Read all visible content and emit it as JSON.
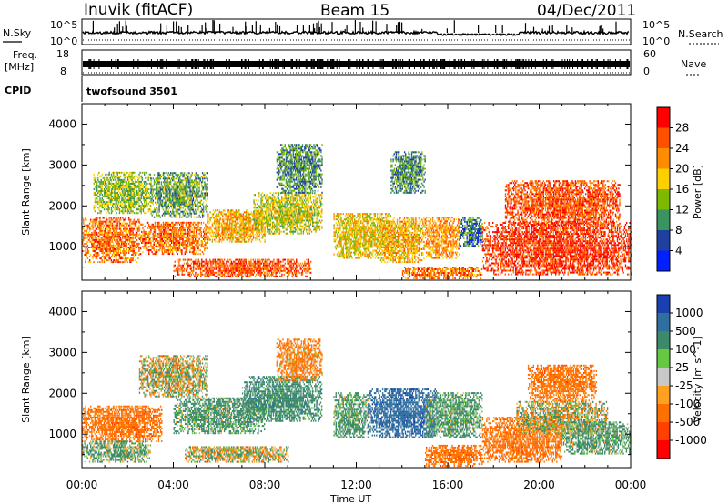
{
  "header": {
    "station": "Inuvik (fitACF)",
    "beam": "Beam 15",
    "date": "04/Dec/2011"
  },
  "status_panels": {
    "nsky_label": "N.Sky",
    "nsky_ticks": [
      "10^5",
      "10^0"
    ],
    "nsearch_label": "N.Search",
    "freq_label_1": "Freq.",
    "freq_label_2": "[MHz]",
    "freq_ticks": [
      "18",
      "8"
    ],
    "nave_label": "Nave",
    "nave_ticks": [
      "60",
      "0"
    ],
    "cpid_label": "CPID",
    "cpid_value": "twofsound 3501"
  },
  "chart_data": [
    {
      "type": "heatmap",
      "name": "power-panel",
      "ylabel": "Slant Range [km]",
      "xlabel": "Time UT",
      "x_ticks": [
        "00:00",
        "04:00",
        "08:00",
        "12:00",
        "16:00",
        "20:00",
        "00:00"
      ],
      "y_ticks": [
        1000,
        2000,
        3000,
        4000
      ],
      "xlim_hours": [
        0,
        24
      ],
      "ylim_km": [
        180,
        4500
      ],
      "colorbar": {
        "label": "Power [dB]",
        "ticks": [
          "28",
          "24",
          "20",
          "16",
          "12",
          "8",
          "4"
        ],
        "colors": [
          "#ff0000",
          "#ff5000",
          "#ff8c00",
          "#ffd000",
          "#7fb800",
          "#3a9460",
          "#2040a0",
          "#0020ff"
        ]
      },
      "regions": [
        {
          "t": [
            0.0,
            2.5
          ],
          "r": [
            600,
            1700
          ],
          "v": 24
        },
        {
          "t": [
            2.5,
            5.5
          ],
          "r": [
            800,
            1600
          ],
          "v": 24
        },
        {
          "t": [
            0.5,
            3.0
          ],
          "r": [
            1800,
            2800
          ],
          "v": 14
        },
        {
          "t": [
            3.0,
            5.5
          ],
          "r": [
            1700,
            2800
          ],
          "v": 12
        },
        {
          "t": [
            5.5,
            8.0
          ],
          "r": [
            1100,
            1900
          ],
          "v": 20
        },
        {
          "t": [
            7.5,
            10.5
          ],
          "r": [
            1300,
            2300
          ],
          "v": 16
        },
        {
          "t": [
            8.5,
            10.5
          ],
          "r": [
            2300,
            3500
          ],
          "v": 10
        },
        {
          "t": [
            4.0,
            10.0
          ],
          "r": [
            250,
            700
          ],
          "v": 26
        },
        {
          "t": [
            11.0,
            13.5
          ],
          "r": [
            700,
            1800
          ],
          "v": 18
        },
        {
          "t": [
            13.0,
            15.0
          ],
          "r": [
            600,
            1700
          ],
          "v": 20
        },
        {
          "t": [
            13.5,
            15.0
          ],
          "r": [
            2300,
            3300
          ],
          "v": 10
        },
        {
          "t": [
            15.0,
            16.5
          ],
          "r": [
            700,
            1700
          ],
          "v": 22
        },
        {
          "t": [
            14.0,
            17.5
          ],
          "r": [
            200,
            500
          ],
          "v": 24
        },
        {
          "t": [
            16.5,
            17.5
          ],
          "r": [
            1000,
            1700
          ],
          "v": 8
        },
        {
          "t": [
            17.5,
            24.0
          ],
          "r": [
            300,
            1600
          ],
          "v": 28
        },
        {
          "t": [
            18.5,
            23.5
          ],
          "r": [
            1500,
            2600
          ],
          "v": 26
        }
      ]
    },
    {
      "type": "heatmap",
      "name": "velocity-panel",
      "ylabel": "Slant Range [km]",
      "xlabel": "Time UT",
      "x_ticks": [
        "00:00",
        "04:00",
        "08:00",
        "12:00",
        "16:00",
        "20:00",
        "00:00"
      ],
      "y_ticks": [
        1000,
        2000,
        3000,
        4000
      ],
      "xlim_hours": [
        0,
        24
      ],
      "ylim_km": [
        180,
        4500
      ],
      "colorbar": {
        "label": "Velocity [m s^-1]",
        "ticks": [
          "1000",
          "500",
          "100",
          "25",
          "-25",
          "-100",
          "-500",
          "-1000"
        ],
        "colors": [
          "#1a3fb0",
          "#2f6fa0",
          "#3d8a6a",
          "#66c840",
          "#c8c8c8",
          "#ffa020",
          "#ff7000",
          "#ff4000",
          "#ff0000"
        ]
      },
      "regions": [
        {
          "t": [
            0.0,
            3.5
          ],
          "r": [
            800,
            1700
          ],
          "v": -300
        },
        {
          "t": [
            0.0,
            3.0
          ],
          "r": [
            300,
            800
          ],
          "v": 150
        },
        {
          "t": [
            2.5,
            5.5
          ],
          "r": [
            1900,
            2900
          ],
          "v": 0
        },
        {
          "t": [
            4.0,
            8.0
          ],
          "r": [
            1000,
            1900
          ],
          "v": 200
        },
        {
          "t": [
            4.5,
            9.0
          ],
          "r": [
            300,
            700
          ],
          "v": 0
        },
        {
          "t": [
            7.0,
            10.5
          ],
          "r": [
            1300,
            2400
          ],
          "v": 300
        },
        {
          "t": [
            8.5,
            10.5
          ],
          "r": [
            2300,
            3300
          ],
          "v": -200
        },
        {
          "t": [
            11.0,
            12.5
          ],
          "r": [
            900,
            2000
          ],
          "v": 200
        },
        {
          "t": [
            12.5,
            15.5
          ],
          "r": [
            900,
            2100
          ],
          "v": 800
        },
        {
          "t": [
            15.0,
            17.5
          ],
          "r": [
            900,
            2000
          ],
          "v": 200
        },
        {
          "t": [
            15.0,
            17.5
          ],
          "r": [
            200,
            700
          ],
          "v": -300
        },
        {
          "t": [
            17.5,
            21.0
          ],
          "r": [
            300,
            1400
          ],
          "v": -300
        },
        {
          "t": [
            19.0,
            23.0
          ],
          "r": [
            1000,
            1800
          ],
          "v": 0
        },
        {
          "t": [
            21.0,
            24.0
          ],
          "r": [
            500,
            1300
          ],
          "v": 200
        },
        {
          "t": [
            19.5,
            22.5
          ],
          "r": [
            1800,
            2700
          ],
          "v": -300
        }
      ]
    }
  ]
}
